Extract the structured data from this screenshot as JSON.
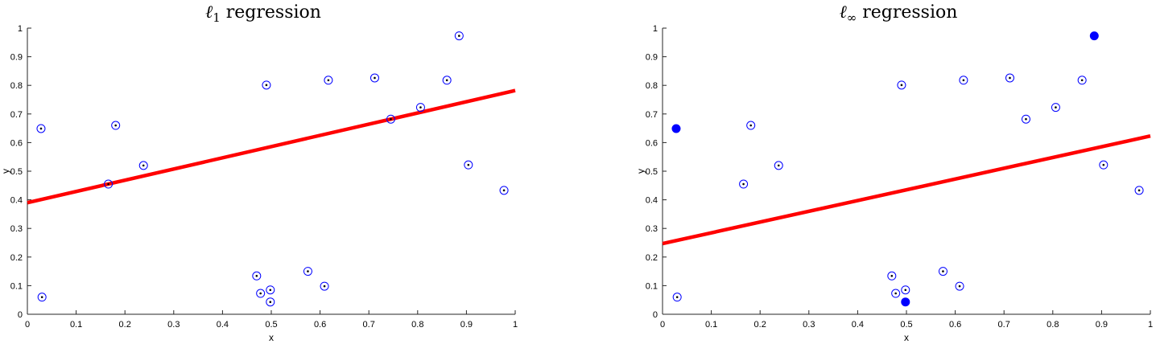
{
  "chart_data": [
    {
      "type": "scatter",
      "title_prefix": "ℓ",
      "title_sub": "1",
      "title_suffix": " regression",
      "xlabel": "x",
      "ylabel": "y",
      "xlim": [
        0,
        1
      ],
      "ylim": [
        0,
        1
      ],
      "xticks": [
        "0",
        "0.1",
        "0.2",
        "0.3",
        "0.4",
        "0.5",
        "0.6",
        "0.7",
        "0.8",
        "0.9",
        "1"
      ],
      "yticks": [
        "0",
        "0.1",
        "0.2",
        "0.3",
        "0.4",
        "0.5",
        "0.6",
        "0.7",
        "0.8",
        "0.9",
        "1"
      ],
      "grid": false,
      "marker_color": "#0000ff",
      "line_color": "#ff0000",
      "points": [
        {
          "x": 0.028,
          "y": 0.649
        },
        {
          "x": 0.03,
          "y": 0.06
        },
        {
          "x": 0.166,
          "y": 0.455
        },
        {
          "x": 0.181,
          "y": 0.66
        },
        {
          "x": 0.238,
          "y": 0.52
        },
        {
          "x": 0.47,
          "y": 0.134
        },
        {
          "x": 0.478,
          "y": 0.073
        },
        {
          "x": 0.49,
          "y": 0.801
        },
        {
          "x": 0.498,
          "y": 0.085
        },
        {
          "x": 0.498,
          "y": 0.043
        },
        {
          "x": 0.575,
          "y": 0.15
        },
        {
          "x": 0.609,
          "y": 0.098
        },
        {
          "x": 0.617,
          "y": 0.818
        },
        {
          "x": 0.712,
          "y": 0.826
        },
        {
          "x": 0.745,
          "y": 0.682
        },
        {
          "x": 0.806,
          "y": 0.723
        },
        {
          "x": 0.86,
          "y": 0.818
        },
        {
          "x": 0.885,
          "y": 0.973
        },
        {
          "x": 0.904,
          "y": 0.522
        },
        {
          "x": 0.977,
          "y": 0.433
        }
      ],
      "highlighted": [],
      "fit_line": {
        "x": [
          0,
          1
        ],
        "y": [
          0.39,
          0.782
        ]
      }
    },
    {
      "type": "scatter",
      "title_prefix": "ℓ",
      "title_sub": "∞",
      "title_suffix": " regression",
      "xlabel": "x",
      "ylabel": "y",
      "xlim": [
        0,
        1
      ],
      "ylim": [
        0,
        1
      ],
      "xticks": [
        "0",
        "0.1",
        "0.2",
        "0.3",
        "0.4",
        "0.5",
        "0.6",
        "0.7",
        "0.8",
        "0.9",
        "1"
      ],
      "yticks": [
        "0",
        "0.1",
        "0.2",
        "0.3",
        "0.4",
        "0.5",
        "0.6",
        "0.7",
        "0.8",
        "0.9",
        "1"
      ],
      "grid": false,
      "marker_color": "#0000ff",
      "line_color": "#ff0000",
      "points": [
        {
          "x": 0.028,
          "y": 0.649
        },
        {
          "x": 0.03,
          "y": 0.06
        },
        {
          "x": 0.166,
          "y": 0.455
        },
        {
          "x": 0.181,
          "y": 0.66
        },
        {
          "x": 0.238,
          "y": 0.52
        },
        {
          "x": 0.47,
          "y": 0.134
        },
        {
          "x": 0.478,
          "y": 0.073
        },
        {
          "x": 0.49,
          "y": 0.801
        },
        {
          "x": 0.498,
          "y": 0.085
        },
        {
          "x": 0.498,
          "y": 0.043
        },
        {
          "x": 0.575,
          "y": 0.15
        },
        {
          "x": 0.609,
          "y": 0.098
        },
        {
          "x": 0.617,
          "y": 0.818
        },
        {
          "x": 0.712,
          "y": 0.826
        },
        {
          "x": 0.745,
          "y": 0.682
        },
        {
          "x": 0.806,
          "y": 0.723
        },
        {
          "x": 0.86,
          "y": 0.818
        },
        {
          "x": 0.885,
          "y": 0.973
        },
        {
          "x": 0.904,
          "y": 0.522
        },
        {
          "x": 0.977,
          "y": 0.433
        }
      ],
      "highlighted": [
        0,
        9,
        17
      ],
      "fit_line": {
        "x": [
          0,
          1
        ],
        "y": [
          0.247,
          0.623
        ]
      }
    }
  ]
}
